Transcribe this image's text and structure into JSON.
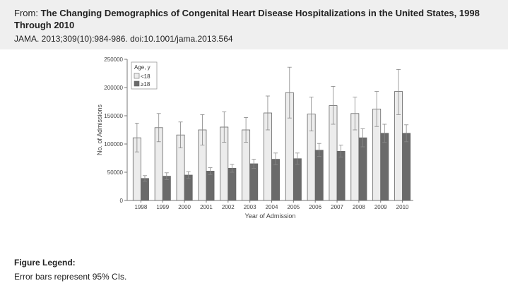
{
  "header": {
    "from_label": "From: ",
    "article_title": "The Changing Demographics of Congenital Heart Disease Hospitalizations in the United States, 1998 Through 2010",
    "citation": "JAMA. 2013;309(10):984-986. doi:10.1001/jama.2013.564"
  },
  "figure_legend": {
    "heading": "Figure Legend:",
    "text": "Error bars represent 95% CIs."
  },
  "colors": {
    "bar_under18": "#ececec",
    "bar_18plus": "#6a6a6a",
    "bar_outline": "#666666",
    "error_bar": "#888888"
  },
  "chart_data": {
    "type": "bar",
    "xlabel": "Year of Admission",
    "ylabel": "No. of Admissions",
    "ylim": [
      0,
      250000
    ],
    "yticks": [
      0,
      50000,
      100000,
      150000,
      200000,
      250000
    ],
    "ytick_labels": [
      "0",
      "50000",
      "100000",
      "150000",
      "200000",
      "250000"
    ],
    "legend_title": "Age, y",
    "legend_position": "top-left",
    "categories": [
      "1998",
      "1999",
      "2000",
      "2001",
      "2002",
      "2003",
      "2004",
      "2005",
      "2006",
      "2007",
      "2008",
      "2009",
      "2010"
    ],
    "series": [
      {
        "name": "<18",
        "values": [
          111000,
          129000,
          116000,
          125000,
          130000,
          125000,
          155000,
          191000,
          153000,
          168000,
          154000,
          162000,
          193000
        ],
        "ci_low": [
          86000,
          104000,
          93000,
          98000,
          103000,
          103000,
          125000,
          146000,
          123000,
          135000,
          125000,
          131000,
          152000
        ],
        "ci_high": [
          137000,
          154000,
          139000,
          152000,
          157000,
          147000,
          185000,
          236000,
          183000,
          202000,
          183000,
          193000,
          232000
        ]
      },
      {
        "name": "≥18",
        "values": [
          39000,
          43000,
          45000,
          52000,
          57000,
          65000,
          73000,
          74000,
          89000,
          87000,
          111000,
          119000,
          119000
        ],
        "ci_low": [
          34000,
          37000,
          39000,
          46000,
          50000,
          57000,
          63000,
          64000,
          78000,
          77000,
          95000,
          103000,
          104000
        ],
        "ci_high": [
          44000,
          49000,
          51000,
          58000,
          64000,
          73000,
          84000,
          84000,
          101000,
          98000,
          127000,
          135000,
          134000
        ]
      }
    ]
  }
}
